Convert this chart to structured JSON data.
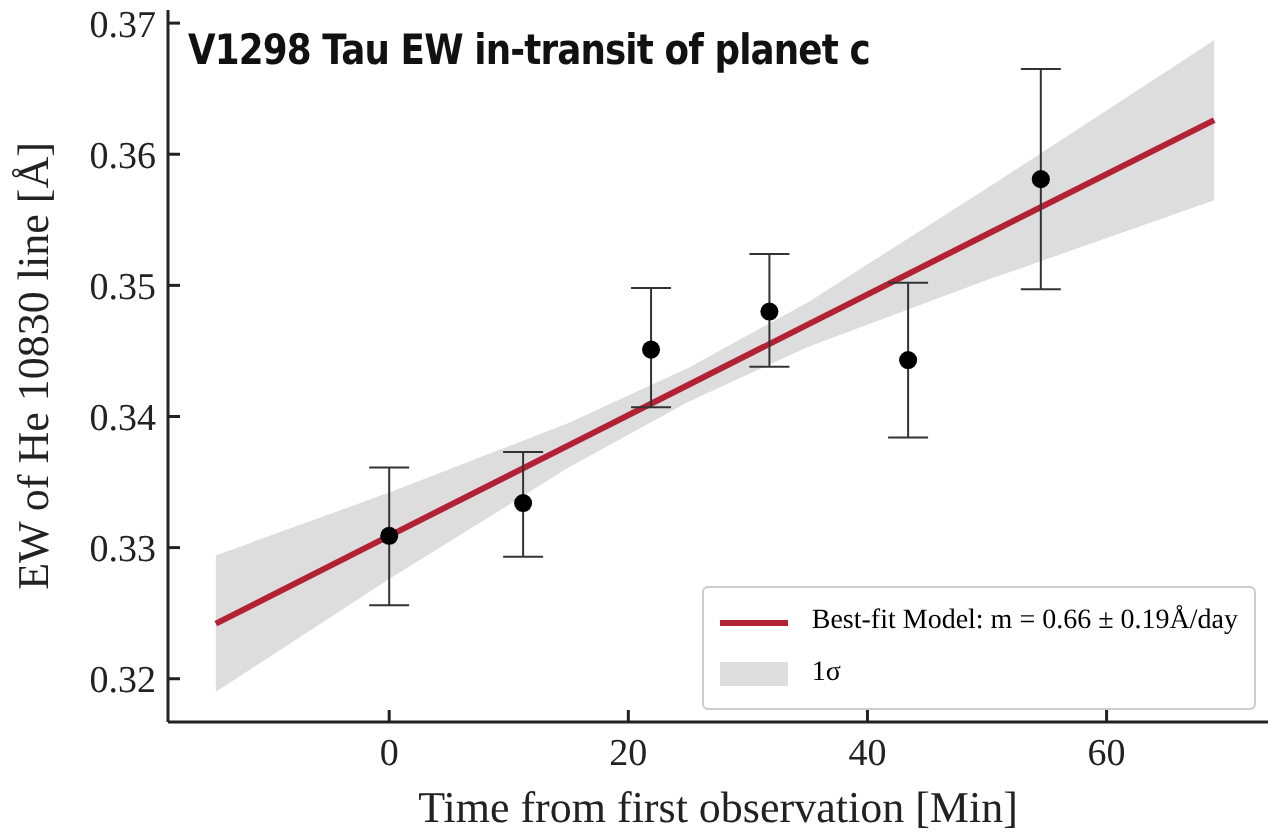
{
  "chart_data": {
    "type": "scatter",
    "title": "V1298 Tau EW in-transit of planet c",
    "xlabel": "Time from first observation [Min]",
    "ylabel": "EW of He 10830 line [Å]",
    "xlim": [
      -18.5,
      73.5
    ],
    "ylim": [
      0.3167,
      0.371
    ],
    "xticks": [
      0,
      20,
      40,
      60
    ],
    "yticks": [
      0.32,
      0.33,
      0.34,
      0.35,
      0.36,
      0.37
    ],
    "grid": false,
    "legend": "bottom right",
    "marker": "circle",
    "annotations": [
      "1σ"
    ],
    "series": [
      {
        "type": "line",
        "name": "Best-fit Model: m = 0.66 ± 0.19Å/day",
        "color": "#b22234",
        "line_style": "solid",
        "marker": "none",
        "x": [
          -14.5,
          0,
          15,
          25,
          35,
          50,
          69
        ],
        "values": [
          0.3242,
          0.3309,
          0.3378,
          0.3424,
          0.347,
          0.3539,
          0.3626
        ],
        "lower": [
          0.319,
          0.3276,
          0.3361,
          0.3411,
          0.3453,
          0.3504,
          0.3565
        ],
        "upper": [
          0.3294,
          0.3342,
          0.3395,
          0.3437,
          0.3487,
          0.3574,
          0.3687
        ]
      },
      {
        "color": "#000000",
        "x": [
          0,
          11.2,
          21.9,
          31.8,
          43.4,
          54.5
        ],
        "values": [
          0.3309,
          0.3334,
          0.3451,
          0.348,
          0.3443,
          0.3581
        ],
        "errors": [
          [
            0.3256,
            0.3361
          ],
          [
            0.3293,
            0.3373
          ],
          [
            0.3407,
            0.3498
          ],
          [
            0.3438,
            0.3524
          ],
          [
            0.3384,
            0.3502
          ],
          [
            0.3497,
            0.3665
          ]
        ]
      }
    ]
  }
}
